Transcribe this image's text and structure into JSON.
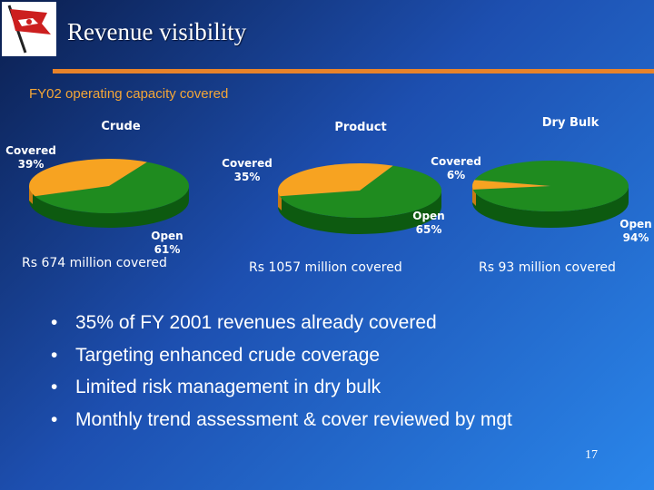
{
  "header": {
    "title": "Revenue visibility",
    "subtitle": "FY02 operating capacity covered"
  },
  "colors": {
    "covered": "#f7a321",
    "open": "#1f8b1f",
    "open_side": "#0d5a10",
    "covered_side": "#c87a12",
    "accent_rule": "#e8832a",
    "subtitle": "#f4a637"
  },
  "chart_data": [
    {
      "type": "pie",
      "title": "Crude",
      "slices": [
        {
          "label": "Covered",
          "percent_label": "39%",
          "value": 39
        },
        {
          "label": "Open",
          "percent_label": "61%",
          "value": 61
        }
      ],
      "caption": "Rs 674 million covered"
    },
    {
      "type": "pie",
      "title": "Product",
      "slices": [
        {
          "label": "Covered",
          "percent_label": "35%",
          "value": 35
        },
        {
          "label": "Open",
          "percent_label": "65%",
          "value": 65
        }
      ],
      "caption": "Rs 1057 million covered"
    },
    {
      "type": "pie",
      "title": "Dry Bulk",
      "slices": [
        {
          "label": "Covered",
          "percent_label": "6%",
          "value": 6
        },
        {
          "label": "Open",
          "percent_label": "94%",
          "value": 94
        }
      ],
      "caption": "Rs 93 million covered"
    }
  ],
  "bullets": [
    "35% of FY 2001 revenues already covered",
    "Targeting enhanced crude coverage",
    "Limited risk management in dry bulk",
    "Monthly trend assessment & cover reviewed by mgt"
  ],
  "page_number": "17",
  "logo_icon": "flag-logo-icon"
}
